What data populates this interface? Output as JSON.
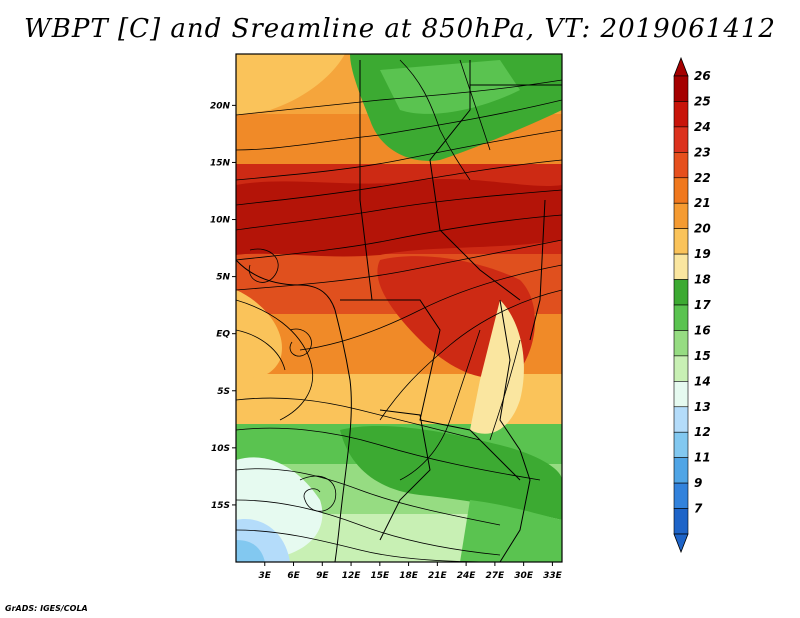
{
  "title": "WBPT [C] and Sreamline at 850hPa, VT: 2019061412",
  "credit": "GrADS: IGES/COLA",
  "map": {
    "lat_ticks": [
      "20N",
      "15N",
      "10N",
      "5N",
      "EQ",
      "5S",
      "10S",
      "15S"
    ],
    "lon_ticks": [
      "3E",
      "6E",
      "9E",
      "12E",
      "15E",
      "18E",
      "21E",
      "24E",
      "27E",
      "30E",
      "33E"
    ],
    "lat_values": [
      20,
      15,
      10,
      5,
      0,
      -5,
      -10,
      -15
    ],
    "lon_values": [
      3,
      6,
      9,
      12,
      15,
      18,
      21,
      24,
      27,
      30,
      33
    ],
    "lat_range": [
      -20,
      24.5
    ],
    "lon_range": [
      0,
      34
    ]
  },
  "colorbar": {
    "labels": [
      "26",
      "25",
      "24",
      "23",
      "22",
      "21",
      "20",
      "19",
      "18",
      "17",
      "16",
      "15",
      "14",
      "13",
      "12",
      "11",
      "9",
      "7"
    ],
    "colors": [
      "#a50000",
      "#c8140a",
      "#dc321e",
      "#e6501e",
      "#f0781e",
      "#f59b32",
      "#fac35a",
      "#fae6a0",
      "#3caa32",
      "#5ac350",
      "#96dc82",
      "#c8f0b4",
      "#e6faf0",
      "#b4dcfa",
      "#82c8f0",
      "#50a5e6",
      "#3282dc",
      "#1e64c8"
    ]
  }
}
